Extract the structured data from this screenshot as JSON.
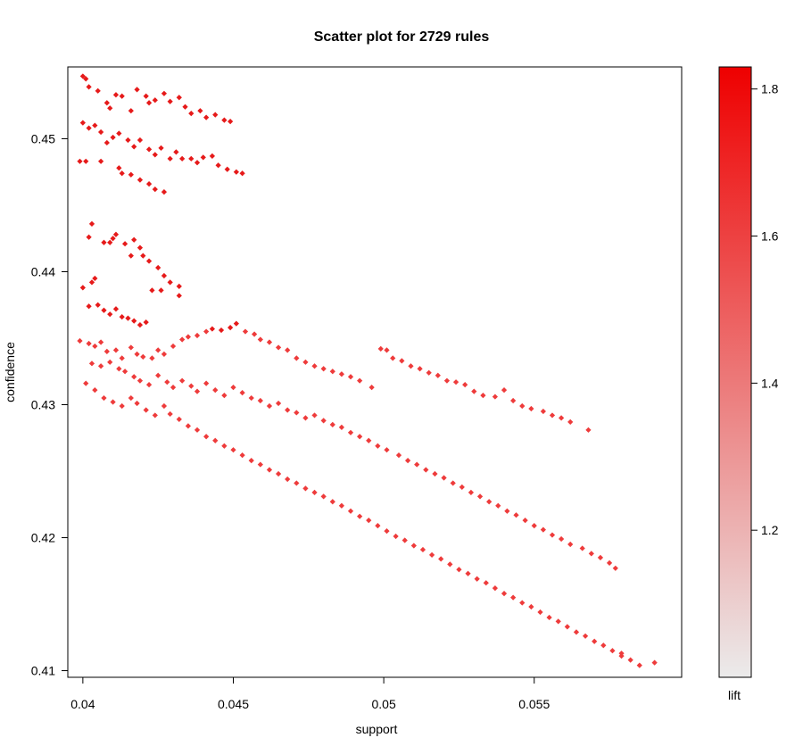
{
  "chart_data": {
    "type": "scatter",
    "title": "Scatter plot for 2729 rules",
    "xlabel": "support",
    "ylabel": "confidence",
    "xlim": [
      0.0395,
      0.0599
    ],
    "ylim": [
      0.4095,
      0.4554
    ],
    "x_ticks": [
      0.04,
      0.045,
      0.05,
      0.055
    ],
    "x_tick_labels": [
      "0.04",
      "0.045",
      "0.05",
      "0.055"
    ],
    "y_ticks": [
      0.41,
      0.42,
      0.43,
      0.44,
      0.45
    ],
    "y_tick_labels": [
      "0.41",
      "0.42",
      "0.43",
      "0.44",
      "0.45"
    ],
    "grid": false,
    "point_count": 2729,
    "point_color_low": "#ee3b3b",
    "point_color_high": "#e61a1a",
    "shading": {
      "label": "lift",
      "range": [
        1.0,
        1.83
      ],
      "ticks": [
        1.2,
        1.4,
        1.6,
        1.8
      ],
      "tick_labels": [
        "1.2",
        "1.4",
        "1.6",
        "1.8"
      ],
      "color_low": "#ebebeb",
      "color_high": "#ee0000"
    },
    "points": [
      [
        0.04,
        0.4547
      ],
      [
        0.0401,
        0.4545
      ],
      [
        0.0402,
        0.4539
      ],
      [
        0.0405,
        0.4536
      ],
      [
        0.0408,
        0.4527
      ],
      [
        0.0409,
        0.4523
      ],
      [
        0.0411,
        0.4533
      ],
      [
        0.0413,
        0.4532
      ],
      [
        0.0416,
        0.4521
      ],
      [
        0.0418,
        0.4537
      ],
      [
        0.0421,
        0.4532
      ],
      [
        0.0422,
        0.4527
      ],
      [
        0.0424,
        0.4529
      ],
      [
        0.0427,
        0.4534
      ],
      [
        0.0429,
        0.4528
      ],
      [
        0.0432,
        0.4531
      ],
      [
        0.0434,
        0.4524
      ],
      [
        0.0436,
        0.4519
      ],
      [
        0.0439,
        0.4521
      ],
      [
        0.0441,
        0.4516
      ],
      [
        0.0444,
        0.4518
      ],
      [
        0.0447,
        0.4514
      ],
      [
        0.0449,
        0.4513
      ],
      [
        0.04,
        0.4512
      ],
      [
        0.0402,
        0.4508
      ],
      [
        0.0404,
        0.451
      ],
      [
        0.0406,
        0.4505
      ],
      [
        0.0408,
        0.4497
      ],
      [
        0.041,
        0.4501
      ],
      [
        0.0412,
        0.4504
      ],
      [
        0.0415,
        0.4499
      ],
      [
        0.0417,
        0.4494
      ],
      [
        0.0419,
        0.4499
      ],
      [
        0.0422,
        0.4492
      ],
      [
        0.0424,
        0.4488
      ],
      [
        0.0426,
        0.4493
      ],
      [
        0.0429,
        0.4485
      ],
      [
        0.0431,
        0.449
      ],
      [
        0.0433,
        0.4485
      ],
      [
        0.0436,
        0.4485
      ],
      [
        0.0438,
        0.4482
      ],
      [
        0.044,
        0.4486
      ],
      [
        0.0443,
        0.4487
      ],
      [
        0.0445,
        0.448
      ],
      [
        0.0448,
        0.4477
      ],
      [
        0.0451,
        0.4475
      ],
      [
        0.0453,
        0.4474
      ],
      [
        0.0399,
        0.4483
      ],
      [
        0.0401,
        0.4483
      ],
      [
        0.0406,
        0.4483
      ],
      [
        0.0412,
        0.4478
      ],
      [
        0.0413,
        0.4474
      ],
      [
        0.0416,
        0.4473
      ],
      [
        0.0419,
        0.4469
      ],
      [
        0.0422,
        0.4466
      ],
      [
        0.0424,
        0.4462
      ],
      [
        0.0427,
        0.446
      ],
      [
        0.0403,
        0.4436
      ],
      [
        0.0402,
        0.4426
      ],
      [
        0.0407,
        0.4422
      ],
      [
        0.041,
        0.4425
      ],
      [
        0.0411,
        0.4428
      ],
      [
        0.0414,
        0.4421
      ],
      [
        0.0417,
        0.4424
      ],
      [
        0.0419,
        0.4418
      ],
      [
        0.042,
        0.4412
      ],
      [
        0.0422,
        0.4408
      ],
      [
        0.0425,
        0.4403
      ],
      [
        0.0427,
        0.4397
      ],
      [
        0.0429,
        0.4392
      ],
      [
        0.0432,
        0.4389
      ],
      [
        0.0416,
        0.4412
      ],
      [
        0.0409,
        0.4422
      ],
      [
        0.0404,
        0.4395
      ],
      [
        0.0403,
        0.4392
      ],
      [
        0.04,
        0.4388
      ],
      [
        0.0423,
        0.4386
      ],
      [
        0.0432,
        0.4382
      ],
      [
        0.0426,
        0.4386
      ],
      [
        0.0402,
        0.4374
      ],
      [
        0.0405,
        0.4375
      ],
      [
        0.0407,
        0.4371
      ],
      [
        0.0409,
        0.4368
      ],
      [
        0.0411,
        0.4372
      ],
      [
        0.0413,
        0.4366
      ],
      [
        0.0415,
        0.4365
      ],
      [
        0.0417,
        0.4363
      ],
      [
        0.0419,
        0.436
      ],
      [
        0.0421,
        0.4362
      ],
      [
        0.0399,
        0.4348
      ],
      [
        0.0402,
        0.4346
      ],
      [
        0.0404,
        0.4344
      ],
      [
        0.0406,
        0.4347
      ],
      [
        0.0408,
        0.434
      ],
      [
        0.0411,
        0.4341
      ],
      [
        0.0413,
        0.4335
      ],
      [
        0.0416,
        0.4343
      ],
      [
        0.0418,
        0.4338
      ],
      [
        0.042,
        0.4336
      ],
      [
        0.0423,
        0.4335
      ],
      [
        0.0425,
        0.4341
      ],
      [
        0.0427,
        0.4338
      ],
      [
        0.043,
        0.4344
      ],
      [
        0.0433,
        0.4349
      ],
      [
        0.0435,
        0.4351
      ],
      [
        0.0438,
        0.4352
      ],
      [
        0.0441,
        0.4355
      ],
      [
        0.0443,
        0.4357
      ],
      [
        0.0446,
        0.4356
      ],
      [
        0.0449,
        0.4358
      ],
      [
        0.0451,
        0.4361
      ],
      [
        0.0454,
        0.4355
      ],
      [
        0.0457,
        0.4353
      ],
      [
        0.0459,
        0.4349
      ],
      [
        0.0462,
        0.4347
      ],
      [
        0.0465,
        0.4343
      ],
      [
        0.0468,
        0.4341
      ],
      [
        0.0471,
        0.4335
      ],
      [
        0.0474,
        0.4332
      ],
      [
        0.0477,
        0.4329
      ],
      [
        0.048,
        0.4327
      ],
      [
        0.0483,
        0.4325
      ],
      [
        0.0486,
        0.4323
      ],
      [
        0.0489,
        0.4321
      ],
      [
        0.0492,
        0.4318
      ],
      [
        0.0496,
        0.4313
      ],
      [
        0.0499,
        0.4342
      ],
      [
        0.0501,
        0.4341
      ],
      [
        0.0503,
        0.4335
      ],
      [
        0.0506,
        0.4333
      ],
      [
        0.0509,
        0.4329
      ],
      [
        0.0512,
        0.4327
      ],
      [
        0.0515,
        0.4324
      ],
      [
        0.0518,
        0.4322
      ],
      [
        0.0521,
        0.4318
      ],
      [
        0.0524,
        0.4317
      ],
      [
        0.0527,
        0.4315
      ],
      [
        0.053,
        0.431
      ],
      [
        0.0533,
        0.4307
      ],
      [
        0.0537,
        0.4306
      ],
      [
        0.054,
        0.4311
      ],
      [
        0.0543,
        0.4303
      ],
      [
        0.0546,
        0.4299
      ],
      [
        0.0549,
        0.4297
      ],
      [
        0.0553,
        0.4295
      ],
      [
        0.0556,
        0.4292
      ],
      [
        0.0559,
        0.429
      ],
      [
        0.0562,
        0.4287
      ],
      [
        0.0568,
        0.4281
      ],
      [
        0.0403,
        0.4331
      ],
      [
        0.0406,
        0.4329
      ],
      [
        0.0409,
        0.4332
      ],
      [
        0.0412,
        0.4327
      ],
      [
        0.0414,
        0.4325
      ],
      [
        0.0417,
        0.4321
      ],
      [
        0.0419,
        0.4318
      ],
      [
        0.0422,
        0.4315
      ],
      [
        0.0425,
        0.4322
      ],
      [
        0.0428,
        0.4317
      ],
      [
        0.043,
        0.4313
      ],
      [
        0.0433,
        0.4318
      ],
      [
        0.0436,
        0.4314
      ],
      [
        0.0438,
        0.431
      ],
      [
        0.0441,
        0.4316
      ],
      [
        0.0444,
        0.4311
      ],
      [
        0.0447,
        0.4307
      ],
      [
        0.045,
        0.4313
      ],
      [
        0.0453,
        0.4309
      ],
      [
        0.0456,
        0.4305
      ],
      [
        0.0459,
        0.4303
      ],
      [
        0.0462,
        0.4299
      ],
      [
        0.0465,
        0.4301
      ],
      [
        0.0468,
        0.4296
      ],
      [
        0.0471,
        0.4294
      ],
      [
        0.0474,
        0.429
      ],
      [
        0.0477,
        0.4292
      ],
      [
        0.048,
        0.4288
      ],
      [
        0.0483,
        0.4285
      ],
      [
        0.0486,
        0.4283
      ],
      [
        0.0489,
        0.4279
      ],
      [
        0.0492,
        0.4276
      ],
      [
        0.0495,
        0.4273
      ],
      [
        0.0498,
        0.4269
      ],
      [
        0.0501,
        0.4266
      ],
      [
        0.0505,
        0.4262
      ],
      [
        0.0508,
        0.4258
      ],
      [
        0.0511,
        0.4255
      ],
      [
        0.0514,
        0.4251
      ],
      [
        0.0517,
        0.4248
      ],
      [
        0.052,
        0.4245
      ],
      [
        0.0523,
        0.4241
      ],
      [
        0.0526,
        0.4238
      ],
      [
        0.0529,
        0.4234
      ],
      [
        0.0532,
        0.4231
      ],
      [
        0.0535,
        0.4227
      ],
      [
        0.0538,
        0.4224
      ],
      [
        0.0541,
        0.422
      ],
      [
        0.0544,
        0.4217
      ],
      [
        0.0547,
        0.4213
      ],
      [
        0.055,
        0.4209
      ],
      [
        0.0553,
        0.4206
      ],
      [
        0.0556,
        0.4202
      ],
      [
        0.0559,
        0.4199
      ],
      [
        0.0562,
        0.4195
      ],
      [
        0.0566,
        0.4192
      ],
      [
        0.0569,
        0.4188
      ],
      [
        0.0572,
        0.4185
      ],
      [
        0.0575,
        0.4181
      ],
      [
        0.0577,
        0.4177
      ],
      [
        0.0401,
        0.4316
      ],
      [
        0.0404,
        0.4311
      ],
      [
        0.0407,
        0.4305
      ],
      [
        0.041,
        0.4302
      ],
      [
        0.0413,
        0.4299
      ],
      [
        0.0416,
        0.4305
      ],
      [
        0.0418,
        0.4301
      ],
      [
        0.0421,
        0.4296
      ],
      [
        0.0424,
        0.4292
      ],
      [
        0.0427,
        0.4299
      ],
      [
        0.0429,
        0.4293
      ],
      [
        0.0432,
        0.4289
      ],
      [
        0.0435,
        0.4284
      ],
      [
        0.0438,
        0.4281
      ],
      [
        0.0441,
        0.4276
      ],
      [
        0.0444,
        0.4273
      ],
      [
        0.0447,
        0.4269
      ],
      [
        0.045,
        0.4266
      ],
      [
        0.0453,
        0.4262
      ],
      [
        0.0456,
        0.4258
      ],
      [
        0.0459,
        0.4255
      ],
      [
        0.0462,
        0.4251
      ],
      [
        0.0465,
        0.4248
      ],
      [
        0.0468,
        0.4244
      ],
      [
        0.0471,
        0.4241
      ],
      [
        0.0474,
        0.4237
      ],
      [
        0.0477,
        0.4234
      ],
      [
        0.048,
        0.4231
      ],
      [
        0.0483,
        0.4227
      ],
      [
        0.0486,
        0.4224
      ],
      [
        0.0489,
        0.422
      ],
      [
        0.0492,
        0.4216
      ],
      [
        0.0495,
        0.4213
      ],
      [
        0.0498,
        0.4209
      ],
      [
        0.0501,
        0.4205
      ],
      [
        0.0504,
        0.4201
      ],
      [
        0.0507,
        0.4198
      ],
      [
        0.051,
        0.4194
      ],
      [
        0.0513,
        0.4191
      ],
      [
        0.0516,
        0.4187
      ],
      [
        0.0519,
        0.4184
      ],
      [
        0.0522,
        0.418
      ],
      [
        0.0525,
        0.4176
      ],
      [
        0.0528,
        0.4173
      ],
      [
        0.0531,
        0.4169
      ],
      [
        0.0534,
        0.4166
      ],
      [
        0.0537,
        0.4162
      ],
      [
        0.054,
        0.4158
      ],
      [
        0.0543,
        0.4155
      ],
      [
        0.0546,
        0.4151
      ],
      [
        0.0549,
        0.4148
      ],
      [
        0.0552,
        0.4144
      ],
      [
        0.0555,
        0.414
      ],
      [
        0.0558,
        0.4137
      ],
      [
        0.0561,
        0.4133
      ],
      [
        0.0564,
        0.4129
      ],
      [
        0.0567,
        0.4126
      ],
      [
        0.057,
        0.4122
      ],
      [
        0.0573,
        0.4119
      ],
      [
        0.0576,
        0.4115
      ],
      [
        0.0579,
        0.4111
      ],
      [
        0.0582,
        0.4108
      ],
      [
        0.0585,
        0.4104
      ],
      [
        0.059,
        0.4106
      ],
      [
        0.0579,
        0.4113
      ]
    ]
  }
}
